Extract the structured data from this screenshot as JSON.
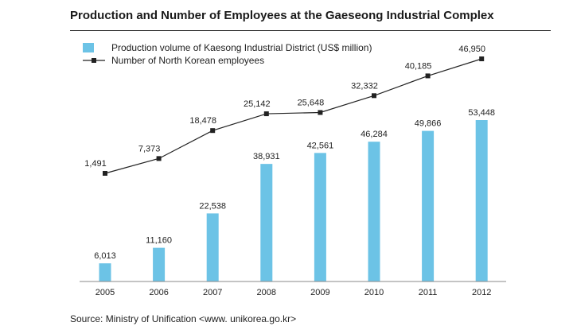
{
  "title": "Production and Number of Employees at the Gaeseong Industrial Complex",
  "source": "Source: Ministry of Unification <www. unikorea.go.kr>",
  "colors": {
    "bar": "#6cc3e6",
    "line": "#222222",
    "marker": "#222222"
  },
  "chart_data": {
    "type": "bar",
    "categories": [
      "2005",
      "2006",
      "2007",
      "2008",
      "2009",
      "2010",
      "2011",
      "2012"
    ],
    "series": [
      {
        "name": "Production volume of Kaesong Industrial District (US$ million)",
        "type": "bar",
        "values": [
          6013,
          11160,
          22538,
          38931,
          42561,
          46284,
          49866,
          53448
        ],
        "labels": [
          "6,013",
          "11,160",
          "22,538",
          "38,931",
          "42,561",
          "46,284",
          "49,866",
          "53,448"
        ]
      },
      {
        "name": "Number of North Korean employees",
        "type": "line",
        "values": [
          1491,
          7373,
          18478,
          25142,
          25648,
          32332,
          40185,
          46950
        ],
        "labels": [
          "1,491",
          "7,373",
          "18,478",
          "25,142",
          "25,648",
          "32,332",
          "40,185",
          "46,950"
        ]
      }
    ],
    "legend_position": "top-left",
    "grid": false
  }
}
